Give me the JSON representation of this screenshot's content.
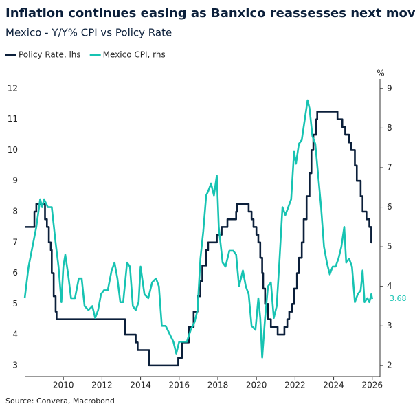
{
  "chart_data": {
    "type": "line",
    "title": "Inflation continues easing as Banxico reassesses next move",
    "subtitle": "Mexico - Y/Y% CPI vs Policy Rate",
    "y2_label": "%",
    "source": "Source: Convera, Macrobond",
    "xlim": [
      2008.0,
      2026.4
    ],
    "xticks": [
      2010,
      2012,
      2014,
      2016,
      2018,
      2020,
      2022,
      2024,
      2026
    ],
    "ylim": [
      2.64,
      12.31
    ],
    "yticks": [
      3,
      4,
      5,
      6,
      7,
      8,
      9,
      10,
      11,
      12
    ],
    "y2lim": [
      1.72,
      9.24
    ],
    "y2ticks": [
      2,
      3,
      4,
      5,
      6,
      7,
      8,
      9
    ],
    "legend": "top-left",
    "series": [
      {
        "name": "Policy Rate, lhs",
        "color": "#0b1f3a",
        "drawstyle": "steps-post",
        "x": [
          2008.0,
          2008.5,
          2008.6,
          2009.05,
          2009.15,
          2009.25,
          2009.35,
          2009.4,
          2009.5,
          2009.6,
          2009.65,
          2013.2,
          2013.75,
          2013.85,
          2014.45,
          2015.95,
          2016.15,
          2016.5,
          2016.75,
          2016.95,
          2017.1,
          2017.2,
          2017.4,
          2017.5,
          2017.95,
          2018.2,
          2018.5,
          2018.95,
          2019.0,
          2019.6,
          2019.75,
          2019.85,
          2020.0,
          2020.1,
          2020.2,
          2020.3,
          2020.35,
          2020.45,
          2020.6,
          2020.75,
          2021.1,
          2021.45,
          2021.6,
          2021.7,
          2021.85,
          2021.95,
          2022.1,
          2022.2,
          2022.35,
          2022.45,
          2022.6,
          2022.75,
          2022.85,
          2022.95,
          2023.1,
          2023.15,
          2024.2,
          2024.45,
          2024.6,
          2024.8,
          2024.9,
          2025.1,
          2025.2,
          2025.4,
          2025.5,
          2025.7,
          2025.85,
          2025.95,
          2026.0
        ],
        "values": [
          7.5,
          8.0,
          8.25,
          7.75,
          7.5,
          7.0,
          6.75,
          6.0,
          5.25,
          4.75,
          4.5,
          4.0,
          3.75,
          3.5,
          3.0,
          3.25,
          3.75,
          4.25,
          4.75,
          5.25,
          5.75,
          6.25,
          6.75,
          7.0,
          7.25,
          7.5,
          7.75,
          8.0,
          8.25,
          8.0,
          7.75,
          7.5,
          7.25,
          7.0,
          6.5,
          6.0,
          5.5,
          5.0,
          4.5,
          4.25,
          4.0,
          4.25,
          4.5,
          4.75,
          5.0,
          5.5,
          6.0,
          6.5,
          7.0,
          7.75,
          8.5,
          9.25,
          10.0,
          10.5,
          11.0,
          11.25,
          11.0,
          10.75,
          10.5,
          10.25,
          10.0,
          9.5,
          9.0,
          8.5,
          8.0,
          7.75,
          7.5,
          7.0,
          7.0
        ]
      },
      {
        "name": "Mexico CPI, rhs",
        "color": "#17c3b2",
        "axis": "y2",
        "x": [
          2008.0,
          2008.2,
          2008.4,
          2008.6,
          2008.8,
          2008.9,
          2009.0,
          2009.2,
          2009.4,
          2009.6,
          2009.75,
          2009.9,
          2010.0,
          2010.1,
          2010.25,
          2010.4,
          2010.6,
          2010.8,
          2010.95,
          2011.1,
          2011.3,
          2011.5,
          2011.65,
          2011.8,
          2011.95,
          2012.1,
          2012.3,
          2012.5,
          2012.65,
          2012.8,
          2012.95,
          2013.1,
          2013.3,
          2013.45,
          2013.6,
          2013.75,
          2013.9,
          2014.0,
          2014.2,
          2014.4,
          2014.6,
          2014.8,
          2014.95,
          2015.1,
          2015.3,
          2015.5,
          2015.7,
          2015.85,
          2016.0,
          2016.2,
          2016.4,
          2016.6,
          2016.8,
          2016.95,
          2017.1,
          2017.25,
          2017.4,
          2017.5,
          2017.65,
          2017.8,
          2017.95,
          2018.05,
          2018.25,
          2018.4,
          2018.6,
          2018.8,
          2018.95,
          2019.1,
          2019.3,
          2019.45,
          2019.6,
          2019.75,
          2019.95,
          2020.1,
          2020.2,
          2020.3,
          2020.45,
          2020.6,
          2020.75,
          2020.9,
          2021.05,
          2021.2,
          2021.35,
          2021.5,
          2021.65,
          2021.8,
          2021.95,
          2022.05,
          2022.2,
          2022.35,
          2022.5,
          2022.65,
          2022.75,
          2022.9,
          2023.05,
          2023.2,
          2023.35,
          2023.5,
          2023.65,
          2023.8,
          2023.95,
          2024.1,
          2024.25,
          2024.4,
          2024.55,
          2024.65,
          2024.8,
          2024.95,
          2025.1,
          2025.25,
          2025.4,
          2025.5,
          2025.6,
          2025.75,
          2025.85,
          2025.95,
          2026.0
        ],
        "values": [
          3.7,
          4.5,
          5.0,
          5.5,
          6.2,
          6.0,
          6.2,
          6.0,
          6.0,
          5.1,
          4.5,
          3.6,
          4.5,
          4.8,
          4.3,
          3.7,
          3.7,
          4.2,
          4.2,
          3.5,
          3.4,
          3.5,
          3.2,
          3.4,
          3.8,
          3.9,
          3.9,
          4.4,
          4.6,
          4.2,
          3.6,
          3.6,
          4.6,
          4.5,
          3.5,
          3.4,
          3.6,
          4.5,
          3.8,
          3.7,
          4.1,
          4.2,
          4.0,
          3.0,
          3.0,
          2.8,
          2.6,
          2.3,
          2.6,
          2.6,
          2.6,
          2.9,
          3.1,
          3.4,
          4.7,
          5.4,
          6.3,
          6.4,
          6.6,
          6.3,
          6.8,
          5.5,
          4.6,
          4.5,
          4.9,
          4.9,
          4.8,
          4.0,
          4.4,
          4.0,
          3.8,
          3.0,
          2.9,
          3.7,
          3.2,
          2.2,
          3.2,
          4.0,
          4.1,
          3.2,
          3.5,
          4.7,
          6.0,
          5.8,
          6.0,
          6.2,
          7.4,
          7.1,
          7.6,
          7.7,
          8.2,
          8.7,
          8.5,
          7.8,
          7.6,
          6.8,
          6.0,
          5.0,
          4.6,
          4.3,
          4.5,
          4.5,
          4.7,
          5.0,
          5.5,
          4.6,
          4.7,
          4.5,
          3.6,
          3.8,
          3.9,
          4.4,
          3.6,
          3.7,
          3.6,
          3.8,
          3.68
        ],
        "value_labels": [
          null,
          null,
          null,
          null,
          null,
          null,
          null,
          null,
          null,
          null,
          null,
          null,
          null,
          null,
          null,
          null,
          null,
          null,
          null,
          null,
          null,
          null,
          null,
          null,
          null,
          null,
          null,
          null,
          null,
          null,
          null,
          null,
          null,
          null,
          null,
          null,
          null,
          null,
          null,
          null,
          null,
          null,
          null,
          null,
          null,
          null,
          null,
          null,
          null,
          null,
          null,
          null,
          null,
          null,
          null,
          null,
          null,
          null,
          null,
          null,
          null,
          null,
          null,
          null,
          null,
          null,
          null,
          null,
          null,
          null,
          null,
          null,
          null,
          null,
          null,
          null,
          null,
          null,
          null,
          null,
          null,
          null,
          null,
          null,
          null,
          null,
          null,
          null,
          null,
          null,
          null,
          null,
          null,
          null,
          null,
          null,
          null,
          null,
          null,
          null,
          null,
          null,
          null,
          null,
          null,
          null,
          null,
          null,
          null,
          null,
          null,
          null,
          null,
          null,
          null,
          null,
          "3.68"
        ]
      }
    ]
  }
}
